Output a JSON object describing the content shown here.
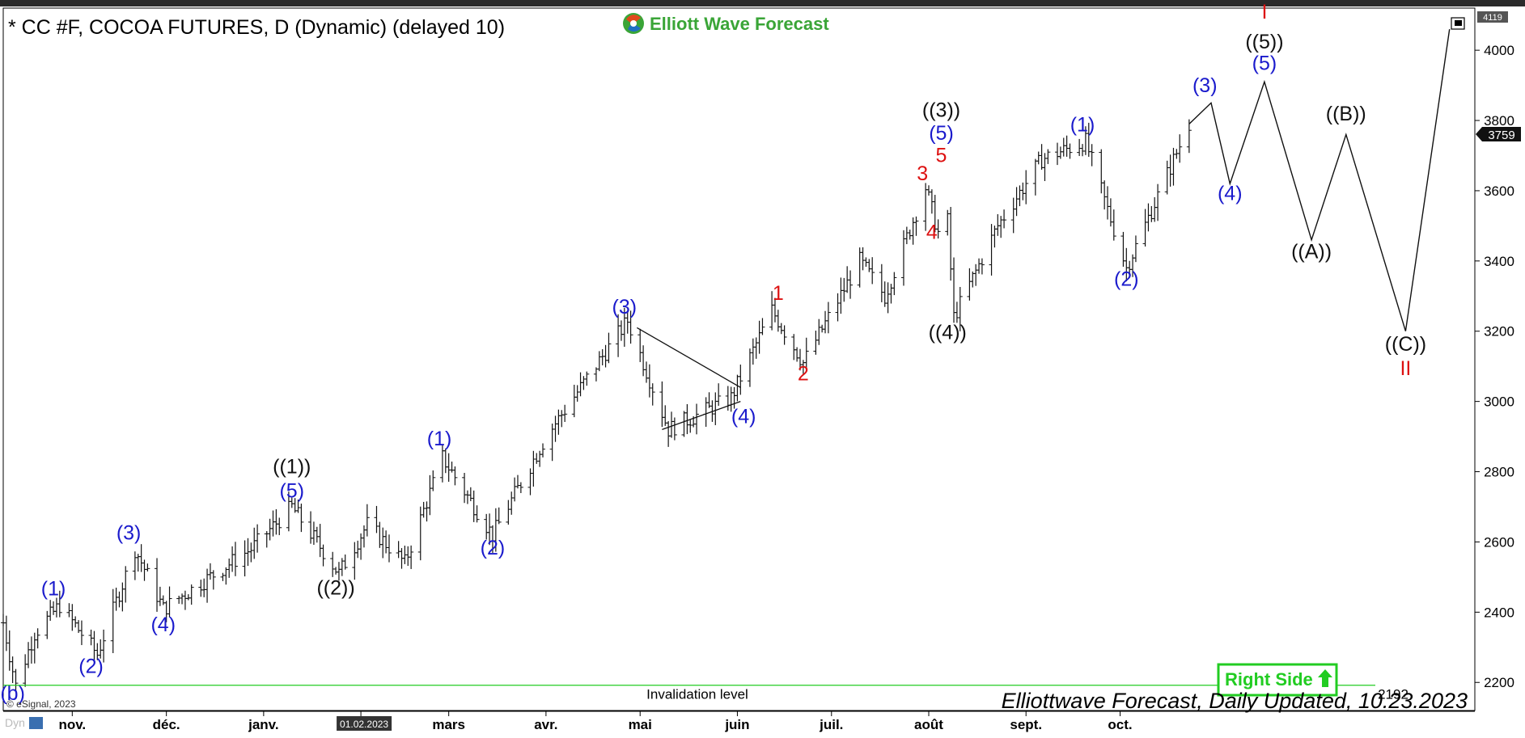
{
  "window": {
    "title": "* CC #F, COCOA FUTURES, D (Dynamic) (delayed 10)",
    "brand": "Elliott Wave Forecast",
    "copyright": "© eSignal, 2023",
    "corner_label": "Dyn",
    "footer": "Elliottwave Forecast, Daily Updated, 10.23.2023",
    "right_side_label": "Right Side",
    "invalidation_label": "Invalidation level"
  },
  "colors": {
    "blue": "#1a1acc",
    "red": "#dd1111",
    "black": "#111111",
    "green": "#22cc22",
    "brand_green": "#3aa537"
  },
  "chart_data": {
    "type": "ohlc",
    "title": "* CC #F, COCOA FUTURES, D (Dynamic) (delayed 10)",
    "x_axis": {
      "type": "date",
      "tick_labels": [
        "nov.",
        "déc.",
        "janv.",
        "01.02.2023",
        "mars",
        "avr.",
        "mai",
        "juin",
        "juil.",
        "août",
        "sept.",
        "oct."
      ],
      "tick_dates": [
        "2022-11-01",
        "2022-12-01",
        "2023-01-01",
        "2023-02-01",
        "2023-03-01",
        "2023-04-01",
        "2023-05-01",
        "2023-06-01",
        "2023-07-01",
        "2023-08-01",
        "2023-09-01",
        "2023-10-01"
      ],
      "range": [
        "2022-10-10",
        "2024-01-20"
      ]
    },
    "y_axis": {
      "tick_labels": [
        "2200",
        "2400",
        "2600",
        "2800",
        "3000",
        "3200",
        "3400",
        "3600",
        "3800",
        "4000"
      ],
      "range": [
        2120,
        4120
      ],
      "position": "right"
    },
    "price_labels": {
      "last": "3759",
      "top": "4119",
      "invalidation": "2192"
    },
    "invalidation_level": 2192,
    "price_path": [
      [
        "2022-10-10",
        2370
      ],
      [
        "2022-10-14",
        2190
      ],
      [
        "2022-10-20",
        2340
      ],
      [
        "2022-10-28",
        2420
      ],
      [
        "2022-11-09",
        2280
      ],
      [
        "2022-11-21",
        2580
      ],
      [
        "2022-11-30",
        2410
      ],
      [
        "2022-12-28",
        2580
      ],
      [
        "2023-01-10",
        2700
      ],
      [
        "2023-01-25",
        2510
      ],
      [
        "2023-02-03",
        2650
      ],
      [
        "2023-02-15",
        2540
      ],
      [
        "2023-02-27",
        2840
      ],
      [
        "2023-03-15",
        2620
      ],
      [
        "2023-04-01",
        2900
      ],
      [
        "2023-04-27",
        3230
      ],
      [
        "2023-05-10",
        2920
      ],
      [
        "2023-05-30",
        3010
      ],
      [
        "2023-06-12",
        3260
      ],
      [
        "2023-06-22",
        3110
      ],
      [
        "2023-07-10",
        3400
      ],
      [
        "2023-07-18",
        3300
      ],
      [
        "2023-07-31",
        3610
      ],
      [
        "2023-08-04",
        3480
      ],
      [
        "2023-08-06",
        3650
      ],
      [
        "2023-08-09",
        3240
      ],
      [
        "2023-08-23",
        3500
      ],
      [
        "2023-09-06",
        3690
      ],
      [
        "2023-09-20",
        3740
      ],
      [
        "2023-10-03",
        3380
      ],
      [
        "2023-10-23",
        3790
      ]
    ],
    "projection_path": [
      [
        "2023-10-23",
        3790
      ],
      [
        "2023-10-30",
        3850
      ],
      [
        "2023-11-05",
        3620
      ],
      [
        "2023-11-16",
        3910
      ],
      [
        "2023-12-01",
        3460
      ],
      [
        "2023-12-12",
        3760
      ],
      [
        "2023-12-31",
        3200
      ],
      [
        "2024-01-14",
        4060
      ]
    ],
    "triangle": {
      "upper": [
        [
          "2023-04-30",
          3210
        ],
        [
          "2023-06-02",
          3040
        ]
      ],
      "lower": [
        [
          "2023-05-08",
          2920
        ],
        [
          "2023-06-02",
          3000
        ]
      ]
    },
    "wave_labels": [
      {
        "text": "(b)",
        "date": "2022-10-13",
        "price": 2150,
        "color": "blue"
      },
      {
        "text": "(1)",
        "date": "2022-10-26",
        "price": 2448,
        "color": "blue"
      },
      {
        "text": "(2)",
        "date": "2022-11-07",
        "price": 2227,
        "color": "blue"
      },
      {
        "text": "(3)",
        "date": "2022-11-19",
        "price": 2607,
        "color": "blue"
      },
      {
        "text": "(4)",
        "date": "2022-11-30",
        "price": 2345,
        "color": "blue"
      },
      {
        "text": "(5)",
        "date": "2023-01-10",
        "price": 2727,
        "color": "blue"
      },
      {
        "text": "((1))",
        "date": "2023-01-10",
        "price": 2795,
        "color": "black"
      },
      {
        "text": "((2))",
        "date": "2023-01-24",
        "price": 2450,
        "color": "black"
      },
      {
        "text": "(1)",
        "date": "2023-02-26",
        "price": 2875,
        "color": "blue"
      },
      {
        "text": "(2)",
        "date": "2023-03-15",
        "price": 2564,
        "color": "blue"
      },
      {
        "text": "(3)",
        "date": "2023-04-26",
        "price": 3250,
        "color": "blue"
      },
      {
        "text": "(4)",
        "date": "2023-06-03",
        "price": 2938,
        "color": "blue"
      },
      {
        "text": "1",
        "date": "2023-06-14",
        "price": 3289,
        "color": "red"
      },
      {
        "text": "2",
        "date": "2023-06-22",
        "price": 3060,
        "color": "red"
      },
      {
        "text": "3",
        "date": "2023-07-30",
        "price": 3630,
        "color": "red"
      },
      {
        "text": "4",
        "date": "2023-08-02",
        "price": 3463,
        "color": "red"
      },
      {
        "text": "5",
        "date": "2023-08-05",
        "price": 3681,
        "color": "red"
      },
      {
        "text": "(5)",
        "date": "2023-08-05",
        "price": 3745,
        "color": "blue"
      },
      {
        "text": "((3))",
        "date": "2023-08-05",
        "price": 3810,
        "color": "black"
      },
      {
        "text": "((4))",
        "date": "2023-08-07",
        "price": 3178,
        "color": "black"
      },
      {
        "text": "(1)",
        "date": "2023-09-19",
        "price": 3769,
        "color": "blue"
      },
      {
        "text": "(2)",
        "date": "2023-10-03",
        "price": 3330,
        "color": "blue"
      },
      {
        "text": "(3)",
        "date": "2023-10-28",
        "price": 3881,
        "color": "blue"
      },
      {
        "text": "(4)",
        "date": "2023-11-05",
        "price": 3573,
        "color": "blue"
      },
      {
        "text": "(5)",
        "date": "2023-11-16",
        "price": 3944,
        "color": "blue"
      },
      {
        "text": "((5))",
        "date": "2023-11-16",
        "price": 4005,
        "color": "black"
      },
      {
        "text": "I",
        "date": "2023-11-16",
        "price": 4090,
        "color": "red"
      },
      {
        "text": "((A))",
        "date": "2023-12-01",
        "price": 3408,
        "color": "black"
      },
      {
        "text": "((B))",
        "date": "2023-12-12",
        "price": 3800,
        "color": "black"
      },
      {
        "text": "((C))",
        "date": "2023-12-31",
        "price": 3144,
        "color": "black"
      },
      {
        "text": "II",
        "date": "2023-12-31",
        "price": 3075,
        "color": "red"
      }
    ]
  }
}
